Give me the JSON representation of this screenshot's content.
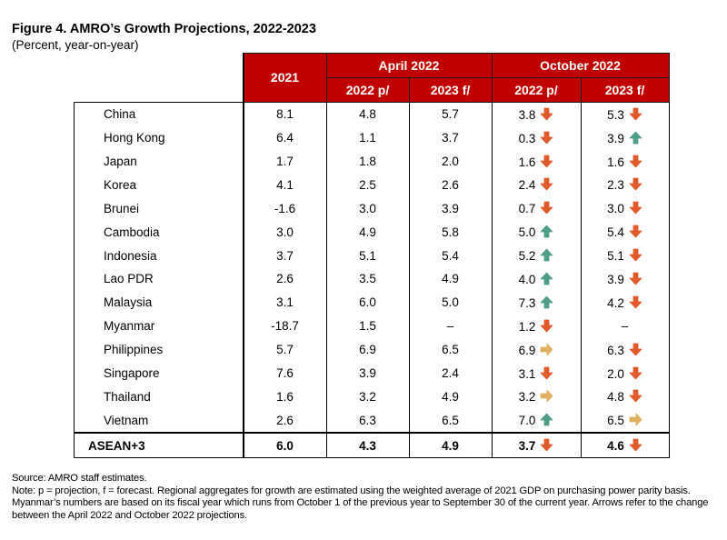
{
  "figure": {
    "title": "Figure 4. AMRO’s Growth Projections, 2022-2023",
    "subtitle": "(Percent, year-on-year)"
  },
  "colors": {
    "header_bg": "#c00000",
    "arrow_down": "#e05a2b",
    "arrow_up": "#4f9e88",
    "arrow_flat": "#e0b060"
  },
  "table": {
    "header": {
      "col_2021": "2021",
      "group_april": "April 2022",
      "group_october": "October 2022",
      "april_2022": "2022 p/",
      "april_2023": "2023 f/",
      "october_2022": "2022 p/",
      "october_2023": "2023 f/"
    },
    "rows": [
      {
        "name": "China",
        "y2021": "8.1",
        "apr22": "4.8",
        "apr23": "5.7",
        "oct22": "3.8",
        "oct22_arrow": "down",
        "oct23": "5.3",
        "oct23_arrow": "down"
      },
      {
        "name": "Hong Kong",
        "y2021": "6.4",
        "apr22": "1.1",
        "apr23": "3.7",
        "oct22": "0.3",
        "oct22_arrow": "down",
        "oct23": "3.9",
        "oct23_arrow": "up"
      },
      {
        "name": "Japan",
        "y2021": "1.7",
        "apr22": "1.8",
        "apr23": "2.0",
        "oct22": "1.6",
        "oct22_arrow": "down",
        "oct23": "1.6",
        "oct23_arrow": "down"
      },
      {
        "name": "Korea",
        "y2021": "4.1",
        "apr22": "2.5",
        "apr23": "2.6",
        "oct22": "2.4",
        "oct22_arrow": "down",
        "oct23": "2.3",
        "oct23_arrow": "down"
      },
      {
        "name": "Brunei",
        "y2021": "-1.6",
        "apr22": "3.0",
        "apr23": "3.9",
        "oct22": "0.7",
        "oct22_arrow": "down",
        "oct23": "3.0",
        "oct23_arrow": "down"
      },
      {
        "name": "Cambodia",
        "y2021": "3.0",
        "apr22": "4.9",
        "apr23": "5.8",
        "oct22": "5.0",
        "oct22_arrow": "up",
        "oct23": "5.4",
        "oct23_arrow": "down"
      },
      {
        "name": "Indonesia",
        "y2021": "3.7",
        "apr22": "5.1",
        "apr23": "5.4",
        "oct22": "5.2",
        "oct22_arrow": "up",
        "oct23": "5.1",
        "oct23_arrow": "down"
      },
      {
        "name": "Lao PDR",
        "y2021": "2.6",
        "apr22": "3.5",
        "apr23": "4.9",
        "oct22": "4.0",
        "oct22_arrow": "up",
        "oct23": "3.9",
        "oct23_arrow": "down"
      },
      {
        "name": "Malaysia",
        "y2021": "3.1",
        "apr22": "6.0",
        "apr23": "5.0",
        "oct22": "7.3",
        "oct22_arrow": "up",
        "oct23": "4.2",
        "oct23_arrow": "down"
      },
      {
        "name": "Myanmar",
        "y2021": "-18.7",
        "apr22": "1.5",
        "apr23": "–",
        "oct22": "1.2",
        "oct22_arrow": "down",
        "oct23": "–",
        "oct23_arrow": "none"
      },
      {
        "name": "Philippines",
        "y2021": "5.7",
        "apr22": "6.9",
        "apr23": "6.5",
        "oct22": "6.9",
        "oct22_arrow": "flat",
        "oct23": "6.3",
        "oct23_arrow": "down"
      },
      {
        "name": "Singapore",
        "y2021": "7.6",
        "apr22": "3.9",
        "apr23": "2.4",
        "oct22": "3.1",
        "oct22_arrow": "down",
        "oct23": "2.0",
        "oct23_arrow": "down"
      },
      {
        "name": "Thailand",
        "y2021": "1.6",
        "apr22": "3.2",
        "apr23": "4.9",
        "oct22": "3.2",
        "oct22_arrow": "flat",
        "oct23": "4.8",
        "oct23_arrow": "down"
      },
      {
        "name": "Vietnam",
        "y2021": "2.6",
        "apr22": "6.3",
        "apr23": "6.5",
        "oct22": "7.0",
        "oct22_arrow": "up",
        "oct23": "6.5",
        "oct23_arrow": "flat"
      }
    ],
    "total": {
      "name": "ASEAN+3",
      "y2021": "6.0",
      "apr22": "4.3",
      "apr23": "4.9",
      "oct22": "3.7",
      "oct22_arrow": "down",
      "oct23": "4.6",
      "oct23_arrow": "down"
    }
  },
  "notes": {
    "source": "Source: AMRO staff estimates.",
    "note": "Note: p = projection, f = forecast. Regional aggregates for growth are estimated using the weighted average of 2021 GDP on purchasing power parity basis. Myanmar’s numbers are based on its fiscal year which runs from October 1 of the previous year to September 30 of the current year. Arrows refer to the change between the April 2022 and October 2022 projections."
  }
}
